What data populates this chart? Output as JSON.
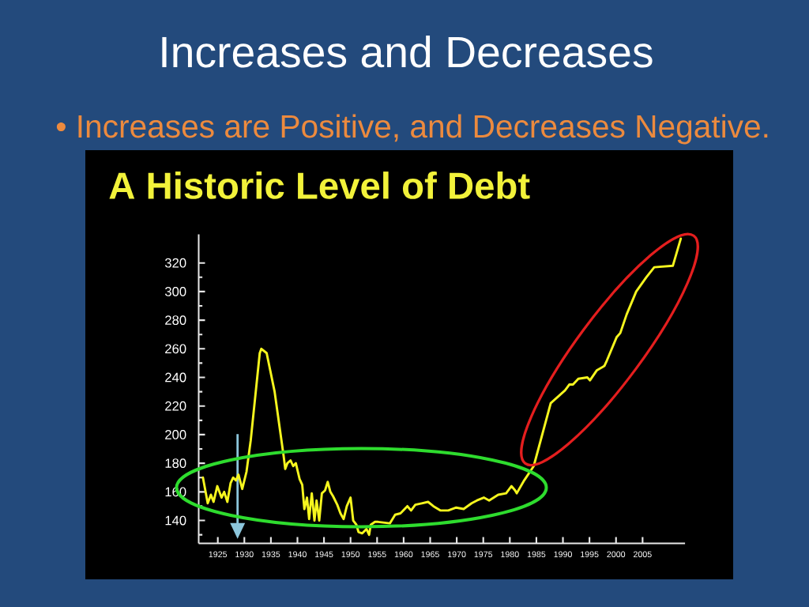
{
  "chart_data": {
    "type": "line",
    "title": "A Historic Level of Debt",
    "annotations": [
      "Increases and Decreases",
      "• Increases are Positive, and Decreases Negative."
    ],
    "x": [
      1922.2,
      1923.1,
      1923.7,
      1924.2,
      1924.9,
      1925.7,
      1926.2,
      1926.8,
      1927.4,
      1927.9,
      1928.4,
      1928.9,
      1929.6,
      1930.4,
      1931.2,
      1932.9,
      1933.2,
      1934.2,
      1935.7,
      1937.4,
      1937.7,
      1938.1,
      1938.7,
      1939.2,
      1939.7,
      1940.4,
      1940.9,
      1941.3,
      1941.8,
      1942.2,
      1942.7,
      1943.2,
      1943.6,
      1944.1,
      1944.6,
      1945.2,
      1945.7,
      1946.2,
      1946.7,
      1947.5,
      1948.1,
      1948.7,
      1949.3,
      1950.0,
      1950.5,
      1951.1,
      1951.5,
      1952.2,
      1953.0,
      1953.5,
      1953.8,
      1954.6,
      1955.2,
      1957.4,
      1958.4,
      1959.4,
      1960.7,
      1961.4,
      1962.2,
      1963.4,
      1964.6,
      1965.6,
      1966.9,
      1968.4,
      1969.9,
      1971.3,
      1972.8,
      1973.8,
      1975.1,
      1976.1,
      1977.8,
      1979.3,
      1980.3,
      1981.0,
      1981.3,
      1982.7,
      1984.5,
      1987.7,
      1989.2,
      1990.4,
      1991.2,
      1991.9,
      1992.9,
      1994.6,
      1995.1,
      1996.4,
      1997.8,
      1998.3,
      2000.1,
      2000.8,
      2002.0,
      2003.8,
      2005.7,
      2007.2,
      2010.7,
      2012.2
    ],
    "values": [
      170,
      152,
      158,
      153,
      164,
      156,
      160,
      153,
      166,
      170,
      168,
      172,
      162,
      174,
      196,
      257,
      260,
      257,
      230,
      185,
      176,
      180,
      182,
      178,
      180,
      169,
      165,
      148,
      156,
      141,
      159,
      140,
      154,
      140,
      159,
      161,
      167,
      160,
      157,
      151,
      145,
      141,
      150,
      156,
      140,
      137,
      132,
      131,
      134,
      130,
      137,
      139,
      139,
      138,
      144,
      145,
      150,
      147,
      151,
      152,
      153,
      150,
      147,
      147,
      149,
      148,
      152,
      154,
      156,
      154,
      158,
      159,
      164,
      161,
      159,
      168,
      178,
      222,
      227,
      231,
      235,
      235,
      239,
      240,
      238,
      245,
      248,
      252,
      268,
      271,
      284,
      300,
      310,
      317,
      318,
      337
    ],
    "color": "#f6f61e",
    "xlim": [
      1921.4,
      2013
    ],
    "ylim": [
      124,
      340
    ],
    "xticks": [
      1925,
      1930,
      1935,
      1940,
      1945,
      1950,
      1955,
      1960,
      1965,
      1970,
      1975,
      1980,
      1985,
      1990,
      1995,
      2000,
      2005
    ],
    "yticks": [
      {
        "value": 130,
        "label": null
      },
      140,
      {
        "value": 150,
        "label": null
      },
      160,
      {
        "value": 170,
        "label": null
      },
      180,
      {
        "value": 190,
        "label": null
      },
      200,
      {
        "value": 210,
        "label": null
      },
      220,
      {
        "value": 230,
        "label": null
      },
      240,
      {
        "value": 250,
        "label": null
      },
      260,
      {
        "value": 270,
        "label": null
      },
      280,
      {
        "value": 290,
        "label": null
      },
      300,
      {
        "value": 310,
        "label": null
      },
      320
    ]
  }
}
